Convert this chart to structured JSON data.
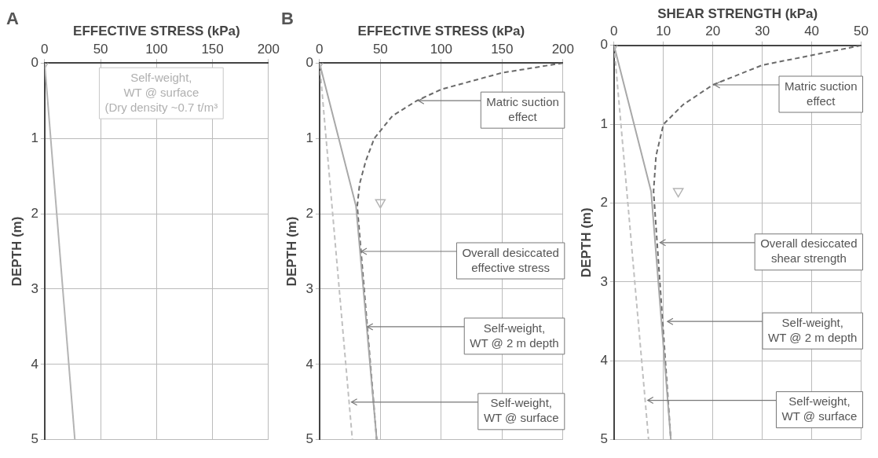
{
  "chart_data": [
    {
      "type": "line",
      "title": "A",
      "xlabel": "EFFECTIVE STRESS (kPa)",
      "ylabel": "DEPTH (m)",
      "xlim": [
        0,
        200
      ],
      "xticks": [
        0,
        50,
        100,
        150,
        200
      ],
      "ylim": [
        5,
        0
      ],
      "yticks": [
        0,
        1,
        2,
        3,
        4,
        5
      ],
      "grid": true,
      "legend": false,
      "series": [
        {
          "color": "#b4b4b4",
          "line_style": "solid",
          "x": [
            0,
            27
          ],
          "values": [
            0,
            5
          ]
        },
        {
          "type": "scatter",
          "color": "#b4b4b4",
          "marker": "triangle",
          "x": [
            0
          ],
          "values": [
            0
          ]
        }
      ],
      "annotations": [
        "Self-weight,\nWT @ surface\n(Dry density ~0.7 t/m³"
      ]
    },
    {
      "type": "line",
      "title": "B",
      "xlabel": "EFFECTIVE STRESS (kPa)",
      "ylabel": "DEPTH (m)",
      "xlim": [
        0,
        200
      ],
      "xticks": [
        0,
        50,
        100,
        150,
        200
      ],
      "ylim": [
        5,
        0
      ],
      "yticks": [
        0,
        1,
        2,
        3,
        4,
        5
      ],
      "grid": true,
      "legend": false,
      "series": [
        {
          "color": "#c0c0c0",
          "line_style": "dashed",
          "x": [
            0,
            27
          ],
          "values": [
            0,
            5
          ]
        },
        {
          "color": "#a8a8a8",
          "line_style": "solid",
          "x": [
            0,
            30,
            47
          ],
          "values": [
            0,
            1.9,
            5
          ]
        },
        {
          "color": "#6a6a6a",
          "line_style": "dashed",
          "x": [
            200,
            150,
            100,
            80,
            60,
            45,
            38,
            33,
            31,
            47
          ],
          "values": [
            0,
            0.13,
            0.35,
            0.5,
            0.7,
            1.0,
            1.3,
            1.6,
            1.9,
            5
          ]
        },
        {
          "type": "scatter",
          "color": "#b4b4b4",
          "marker": "triangle",
          "x": [
            0,
            50
          ],
          "values": [
            0,
            1.85
          ]
        }
      ],
      "annotations": [
        {
          "text": "Matric suction\neffect",
          "x": 80,
          "y": 0.5
        },
        {
          "text": "Overall desiccated\neffective stress",
          "x": 33,
          "y": 2.5
        },
        {
          "text": "Self-weight,\nWT @ 2 m depth",
          "x": 38,
          "y": 3.5
        },
        {
          "text": "Self-weight,\nWT @ surface",
          "x": 25,
          "y": 4.5
        }
      ]
    },
    {
      "type": "line",
      "xlabel": "SHEAR STRENGTH (kPa)",
      "ylabel": "DEPTH (m)",
      "xlim": [
        0,
        50
      ],
      "xticks": [
        0,
        10,
        20,
        30,
        40,
        50
      ],
      "ylim": [
        5,
        0
      ],
      "yticks": [
        0,
        1,
        2,
        3,
        4,
        5
      ],
      "grid": true,
      "legend": false,
      "series": [
        {
          "color": "#c0c0c0",
          "line_style": "dashed",
          "x": [
            0,
            7
          ],
          "values": [
            0,
            5
          ]
        },
        {
          "color": "#a8a8a8",
          "line_style": "solid",
          "x": [
            0,
            7.5,
            11.5
          ],
          "values": [
            0,
            1.85,
            5
          ]
        },
        {
          "color": "#6a6a6a",
          "line_style": "dashed",
          "x": [
            50,
            30,
            20,
            14,
            10,
            8.5,
            8,
            11.5
          ],
          "values": [
            0,
            0.25,
            0.5,
            0.75,
            1.0,
            1.4,
            1.85,
            5
          ]
        },
        {
          "type": "scatter",
          "color": "#b4b4b4",
          "marker": "triangle",
          "x": [
            0,
            13
          ],
          "values": [
            0,
            1.85
          ]
        }
      ],
      "annotations": [
        {
          "text": "Matric suction\neffect",
          "x": 20,
          "y": 0.5
        },
        {
          "text": "Overall desiccated\nshear strength",
          "x": 9,
          "y": 2.5
        },
        {
          "text": "Self-weight,\nWT @ 2 m depth",
          "x": 10.5,
          "y": 3.5
        },
        {
          "text": "Self-weight,\nWT @ surface",
          "x": 6.5,
          "y": 4.5
        }
      ]
    }
  ]
}
